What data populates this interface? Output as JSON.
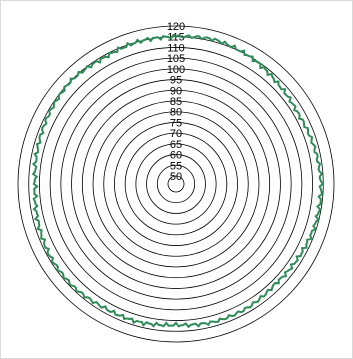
{
  "chart_data": {
    "type": "line",
    "subtype": "polar",
    "title": "",
    "radial_axis": {
      "range": [
        50,
        120
      ],
      "step": 5,
      "tick_labels": [
        "50",
        "55",
        "60",
        "65",
        "70",
        "75",
        "80",
        "85",
        "90",
        "95",
        "100",
        "105",
        "110",
        "115",
        "120"
      ],
      "grid": true,
      "grid_color": "#000000"
    },
    "series": [
      {
        "color": "#2e8b57",
        "theta_deg": [
          0,
          15,
          30,
          45,
          60,
          75,
          90,
          105,
          120,
          135,
          150,
          165,
          180,
          195,
          210,
          225,
          240,
          255,
          270,
          285,
          300,
          315,
          330,
          345
        ],
        "r": [
          115,
          116,
          115,
          113,
          112,
          113,
          114,
          114,
          113,
          112,
          113,
          113,
          112,
          113,
          113,
          114,
          114,
          113,
          112,
          113,
          114,
          115,
          114,
          115
        ]
      }
    ],
    "legend": "none"
  }
}
